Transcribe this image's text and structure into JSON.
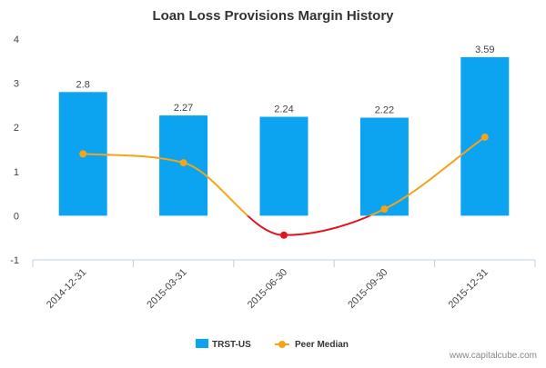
{
  "chart_data": {
    "type": "bar",
    "title": "Loan Loss Provisions Margin History",
    "categories": [
      "2014-12-31",
      "2015-03-31",
      "2015-06-30",
      "2015-09-30",
      "2015-12-31"
    ],
    "ylim": [
      -1,
      4
    ],
    "yticks": [
      -1,
      0,
      1,
      2,
      3,
      4
    ],
    "ytick_labels": [
      "-1",
      "0",
      "1",
      "2",
      "3",
      "4"
    ],
    "series": [
      {
        "name": "TRST-US",
        "type": "bar",
        "color": "#0ca3f0",
        "values": [
          2.8,
          2.27,
          2.24,
          2.22,
          3.59
        ],
        "labels": [
          "2.8",
          "2.27",
          "2.24",
          "2.22",
          "3.59"
        ]
      },
      {
        "name": "Peer Median",
        "type": "line",
        "color": "#f5a31a",
        "negative_color": "#e3141c",
        "values": [
          1.4,
          1.2,
          -0.44,
          0.15,
          1.78
        ]
      }
    ],
    "legend_position": "bottom-center",
    "grid": false
  },
  "footer": {
    "source": "www.capitalcube.com"
  }
}
